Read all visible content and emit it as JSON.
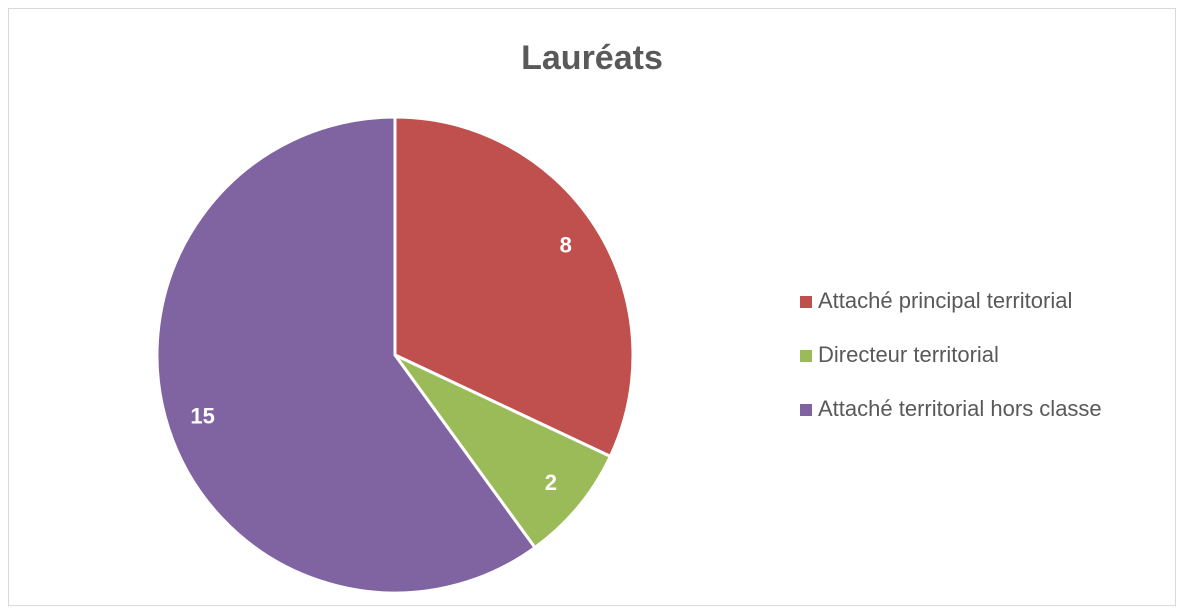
{
  "chart_data": {
    "type": "pie",
    "title": "Lauréats",
    "categories": [
      "Attaché principal territorial",
      "Directeur territorial",
      "Attaché territorial hors classe"
    ],
    "values": [
      8,
      2,
      15
    ],
    "colors": [
      "#c0504d",
      "#9bbb59",
      "#8064a2"
    ],
    "legend": "right"
  }
}
